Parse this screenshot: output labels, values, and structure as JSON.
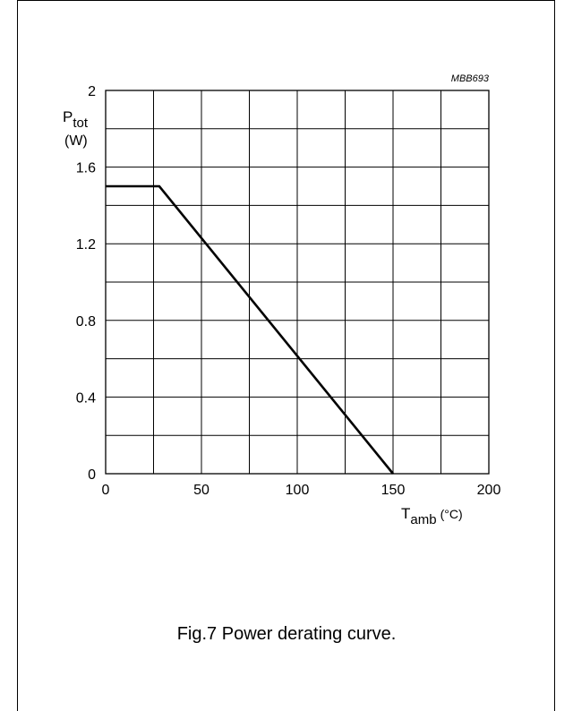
{
  "chart_data": {
    "type": "line",
    "code": "MBB693",
    "ylabel_main": "P",
    "ylabel_sub": "tot",
    "ylabel_unit": "(W)",
    "xlabel_main": "T",
    "xlabel_sub": "amb",
    "xlabel_unit": "(°C)",
    "xlim": [
      0,
      200
    ],
    "ylim": [
      0,
      2
    ],
    "grid": true,
    "x_ticks": [
      0,
      50,
      100,
      150,
      200
    ],
    "x_tick_labels": [
      "0",
      "50",
      "100",
      "150",
      "200"
    ],
    "y_ticks": [
      0,
      0.4,
      0.8,
      1.2,
      1.6,
      2
    ],
    "y_tick_labels": [
      "0",
      "0.4",
      "0.8",
      "1.2",
      "1.6",
      "2"
    ],
    "series": [
      {
        "x": [
          0,
          28,
          150
        ],
        "y": [
          1.5,
          1.5,
          0
        ]
      }
    ]
  },
  "caption": "Fig.7  Power derating curve."
}
